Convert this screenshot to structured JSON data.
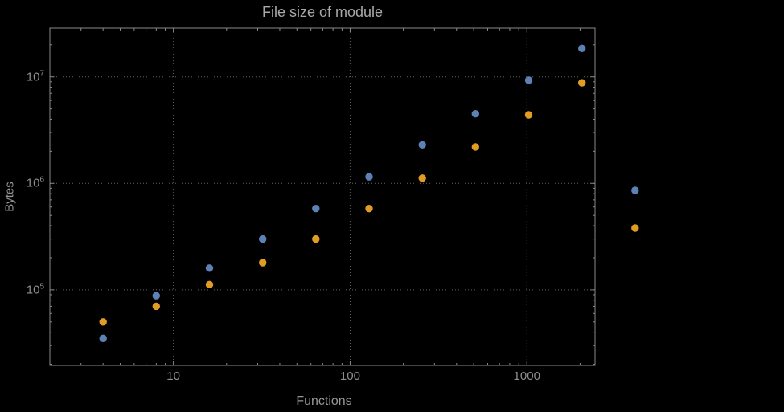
{
  "colors": {
    "background": "#000000",
    "frame": "#8a8a8a",
    "grid": "#606060",
    "tick_text": "#8f8f8f",
    "title_text": "#a8a8a8",
    "axis_label_text": "#979797"
  },
  "chart_data": {
    "type": "scatter",
    "title": "File size of module",
    "xlabel": "Functions",
    "ylabel": "Bytes",
    "x_scale": "log",
    "y_scale": "log",
    "grid": "dotted lines at powers of 10",
    "legend_position": "none",
    "x_range": [
      2,
      2430
    ],
    "y_range": [
      19500,
      28700000
    ],
    "x_ticks": [
      10,
      100,
      1000
    ],
    "x_tick_labels": [
      "10",
      "100",
      "1000"
    ],
    "y_ticks": [
      100000,
      1000000,
      10000000
    ],
    "y_tick_labels": [
      "10^5",
      "10^6",
      "10^7"
    ],
    "series": [
      {
        "name": "blue",
        "color": "#5e81b5",
        "x": [
          4,
          8,
          16,
          32,
          64,
          128,
          256,
          512,
          1024,
          2048,
          4096
        ],
        "y": [
          35000,
          88000,
          160000,
          300000,
          580000,
          1150000,
          2300000,
          4500000,
          9300000,
          18500000,
          860000
        ]
      },
      {
        "name": "orange",
        "color": "#e19c24",
        "x": [
          4,
          8,
          16,
          32,
          64,
          128,
          256,
          512,
          1024,
          2048,
          4096
        ],
        "y": [
          50000,
          70000,
          112000,
          180000,
          300000,
          580000,
          1120000,
          2200000,
          4400000,
          8800000,
          380000
        ]
      }
    ]
  }
}
